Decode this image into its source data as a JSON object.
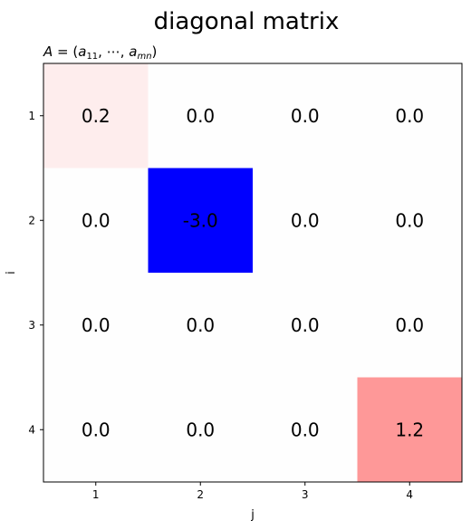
{
  "chart_data": {
    "type": "heatmap",
    "title": "diagonal matrix",
    "subtitle_parts": [
      {
        "t": "A",
        "italic": true
      },
      {
        "t": " = ("
      },
      {
        "t": "a",
        "italic": true
      },
      {
        "t": "11",
        "sub": true
      },
      {
        "t": ", ⋯, "
      },
      {
        "t": "a",
        "italic": true
      },
      {
        "t": "mn",
        "sub": true,
        "italic": true
      },
      {
        "t": ")"
      }
    ],
    "xlabel": "j",
    "ylabel": "i",
    "x_ticks": [
      "1",
      "2",
      "3",
      "4"
    ],
    "y_ticks": [
      "1",
      "2",
      "3",
      "4"
    ],
    "values": [
      [
        0.2,
        0.0,
        0.0,
        0.0
      ],
      [
        0.0,
        -3.0,
        0.0,
        0.0
      ],
      [
        0.0,
        0.0,
        0.0,
        0.0
      ],
      [
        0.0,
        0.0,
        0.0,
        1.2
      ]
    ],
    "labels": [
      [
        "0.2",
        "0.0",
        "0.0",
        "0.0"
      ],
      [
        "0.0",
        "-3.0",
        "0.0",
        "0.0"
      ],
      [
        "0.0",
        "0.0",
        "0.0",
        "0.0"
      ],
      [
        "0.0",
        "0.0",
        "0.0",
        "1.2"
      ]
    ],
    "colormap": "bwr",
    "color_range": [
      -3.0,
      3.0
    ],
    "colors": {
      "low": "#0000ff",
      "mid": "#fefefe",
      "high": "#ff0000"
    },
    "grid": false,
    "legend": "none"
  }
}
